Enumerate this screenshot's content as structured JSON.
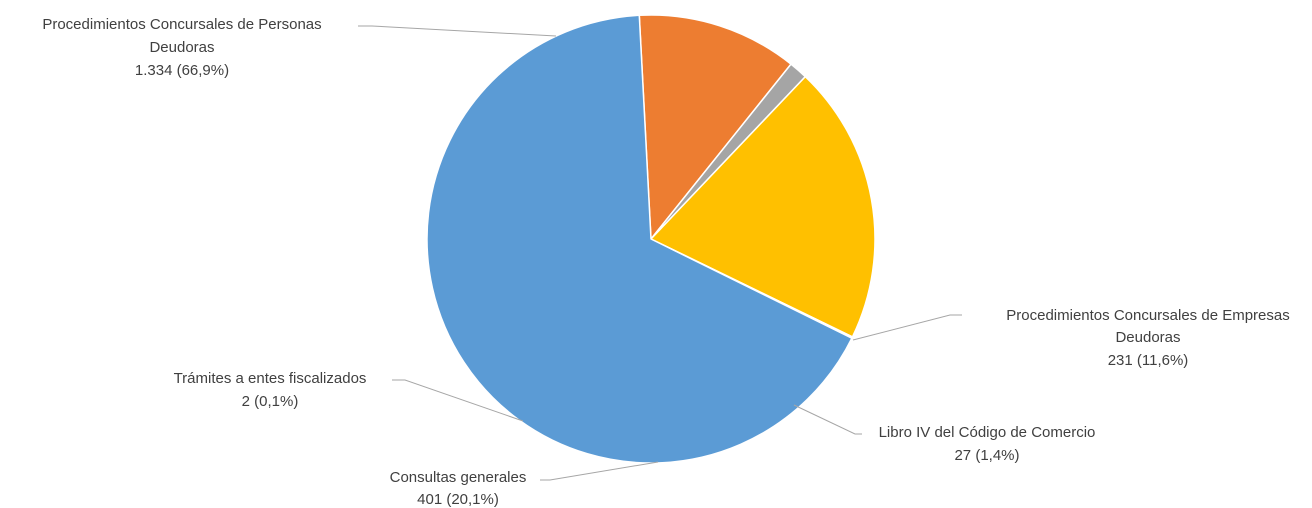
{
  "chart_data": {
    "type": "pie",
    "title": "",
    "slices": [
      {
        "name": "Procedimientos Concursales de Empresas Deudoras",
        "name_lines": [
          "Procedimientos Concursales de Empresas",
          "Deudoras"
        ],
        "value": 231,
        "value_label": "231 (11,6%)",
        "color": "#ED7D31"
      },
      {
        "name": "Libro IV del Código de Comercio",
        "name_lines": [
          "Libro IV del Código de Comercio"
        ],
        "value": 27,
        "value_label": "27 (1,4%)",
        "color": "#A5A5A5"
      },
      {
        "name": "Consultas generales",
        "name_lines": [
          "Consultas generales"
        ],
        "value": 401,
        "value_label": "401 (20,1%)",
        "color": "#FFC000"
      },
      {
        "name": "Trámites a entes fiscalizados",
        "name_lines": [
          "Trámites a entes fiscalizados"
        ],
        "value": 2,
        "value_label": "2 (0,1%)",
        "color": "#4472C4"
      },
      {
        "name": "Procedimientos Concursales de Personas Deudoras",
        "name_lines": [
          "Procedimientos Concursales de Personas",
          "Deudoras"
        ],
        "value": 1334,
        "value_label": "1.334 (66,9%)",
        "color": "#5B9BD5"
      }
    ]
  }
}
